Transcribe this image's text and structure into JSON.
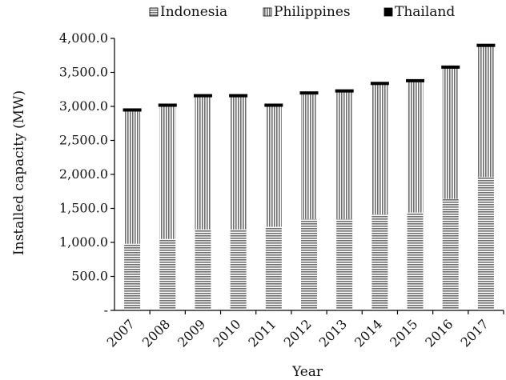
{
  "chart_data": {
    "type": "bar",
    "stacked": true,
    "categories": [
      "2007",
      "2008",
      "2009",
      "2010",
      "2011",
      "2012",
      "2013",
      "2014",
      "2015",
      "2016",
      "2017"
    ],
    "series": [
      {
        "name": "Indonesia",
        "pattern": "horizontal-lines",
        "values": [
          980,
          1050,
          1190,
          1190,
          1230,
          1340,
          1340,
          1410,
          1440,
          1640,
          1960
        ]
      },
      {
        "name": "Philippines",
        "pattern": "vertical-lines",
        "values": [
          1950,
          1950,
          1950,
          1950,
          1770,
          1840,
          1870,
          1910,
          1920,
          1920,
          1920
        ]
      },
      {
        "name": "Thailand",
        "pattern": "solid-black",
        "values": [
          0.3,
          0.3,
          0.3,
          0.3,
          0.3,
          0.3,
          0.3,
          0.3,
          0.3,
          0.3,
          0.3
        ]
      }
    ],
    "ylim": [
      0,
      4000
    ],
    "yticks": [
      0,
      500,
      1000,
      1500,
      2000,
      2500,
      3000,
      3500,
      4000
    ],
    "ytick_labels": [
      "-",
      "500.0",
      "1,000.0",
      "1,500.0",
      "2,000.0",
      "2,500.0",
      "3,000.0",
      "3,500.0",
      "4,000.0"
    ],
    "xlabel": "Year",
    "ylabel": "Installed capacity (MW)",
    "legend_position": "top",
    "grid": false
  }
}
